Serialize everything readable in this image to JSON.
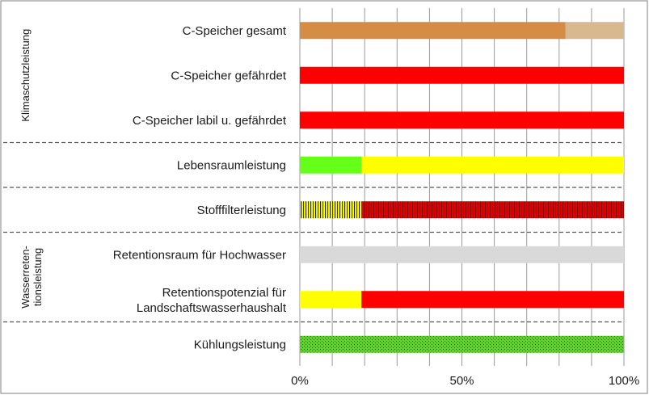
{
  "chart_data": {
    "type": "bar",
    "orientation": "horizontal",
    "stacked": true,
    "xlim": [
      0,
      100
    ],
    "x_ticks": [
      {
        "value": 0,
        "label": "0%"
      },
      {
        "value": 50,
        "label": "50%"
      },
      {
        "value": 100,
        "label": "100%"
      }
    ],
    "grid": true,
    "groups": [
      {
        "label": "Klimaschutzleistung",
        "categories": [
          0,
          1,
          2
        ]
      },
      {
        "label": "Wasserreten-",
        "label2": "tionsleistung",
        "categories": [
          5,
          6
        ]
      }
    ],
    "categories": [
      {
        "label": "C-Speicher gesamt",
        "segments": [
          {
            "value": 82,
            "color": "#d58c45"
          },
          {
            "value": 18,
            "color": "#d7b88f"
          }
        ]
      },
      {
        "label": "C-Speicher gefährdet",
        "segments": [
          {
            "value": 100,
            "color": "#ff0000"
          }
        ]
      },
      {
        "label": "C-Speicher labil u. gefährdet",
        "segments": [
          {
            "value": 100,
            "color": "#ff0000"
          }
        ]
      },
      {
        "label": "Lebensraumleistung",
        "segments": [
          {
            "value": 19,
            "color": "#66ff1a"
          },
          {
            "value": 81,
            "color": "#ffff00"
          }
        ]
      },
      {
        "label": "Stofffilterleistung",
        "segments": [
          {
            "value": 19,
            "color": "#ffff00",
            "pattern": "vertical-lines"
          },
          {
            "value": 81,
            "color": "#e00000",
            "pattern": "vertical-lines"
          }
        ]
      },
      {
        "label": "Retentionsraum für Hochwasser",
        "segments": [
          {
            "value": 100,
            "color": "#d9d9d9"
          }
        ]
      },
      {
        "label": "Retentionspotenzial für",
        "label2": "Landschaftswasserhaushalt",
        "segments": [
          {
            "value": 19,
            "color": "#ffff00"
          },
          {
            "value": 81,
            "color": "#ff0000"
          }
        ]
      },
      {
        "label": "Kühlungsleistung",
        "segments": [
          {
            "value": 100,
            "color": "#55e000",
            "pattern": "dots"
          }
        ]
      }
    ],
    "separators_after": [
      2,
      3,
      4,
      6
    ]
  }
}
